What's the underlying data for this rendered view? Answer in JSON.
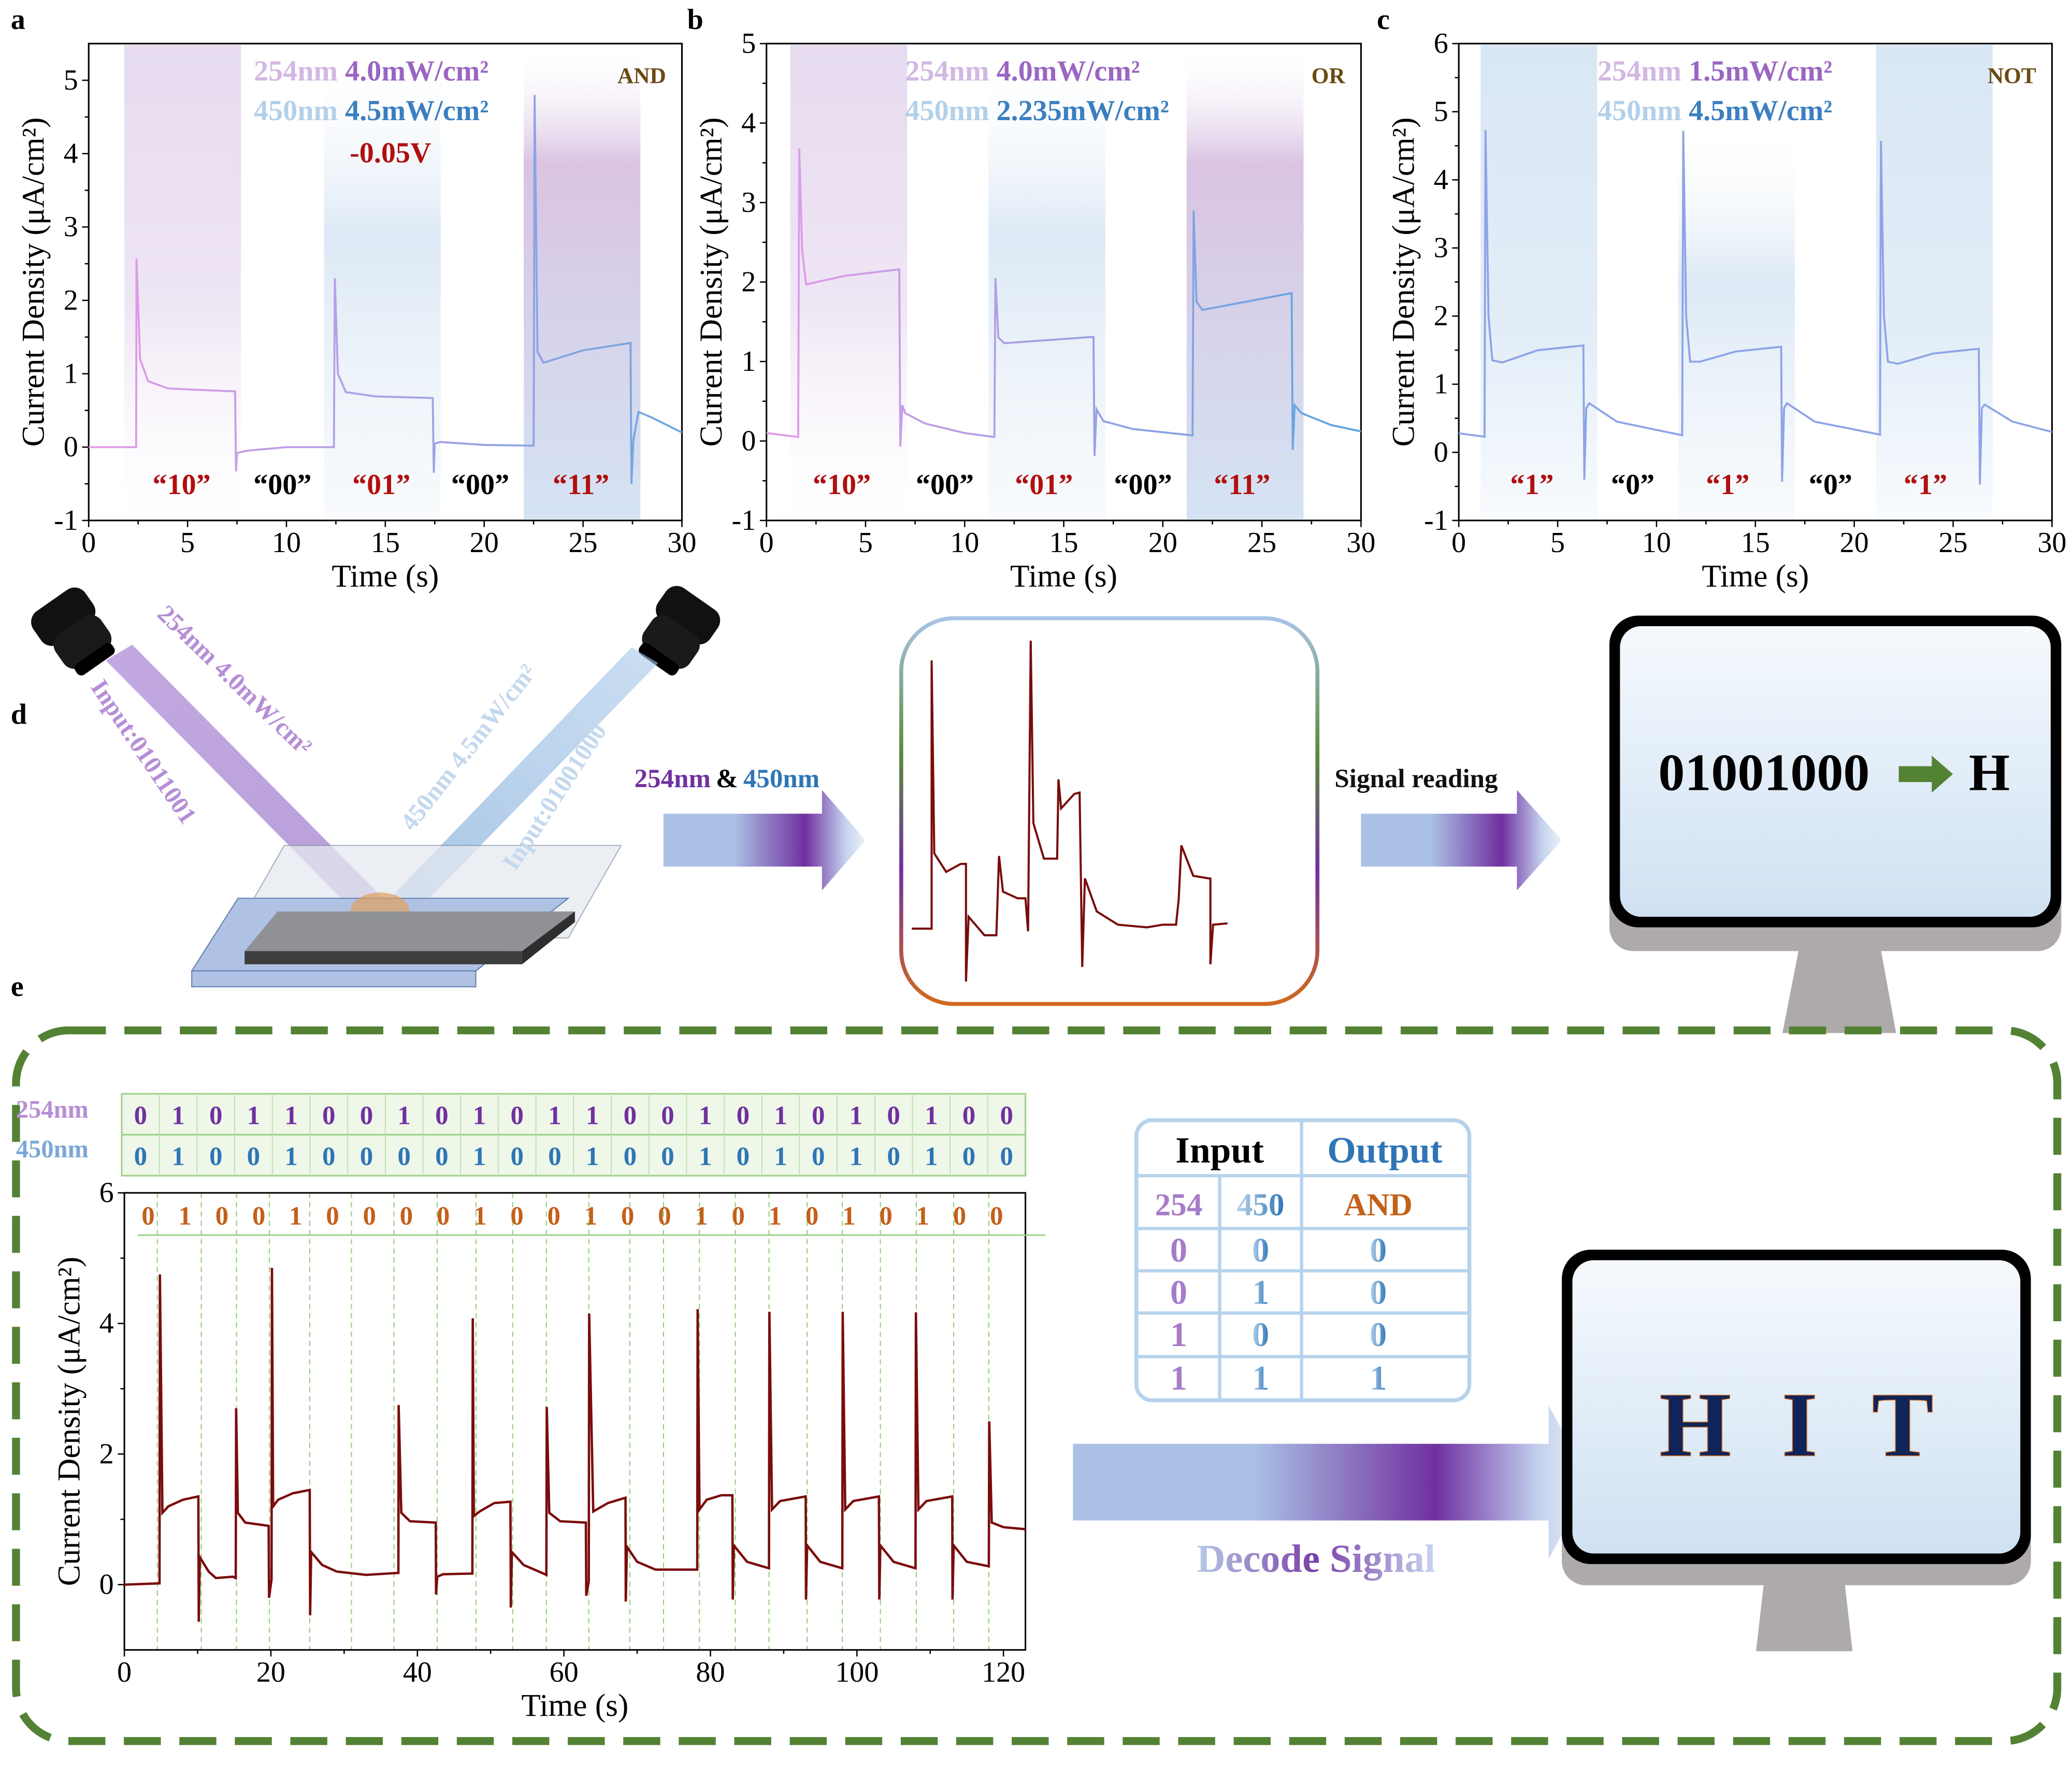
{
  "figure": {
    "panel_labels": {
      "a": "a",
      "b": "b",
      "c": "c",
      "d": "d",
      "e": "e"
    },
    "colors": {
      "uv254": "#8e5fb8",
      "uv254_light": "#c9a9dd",
      "blue450": "#2e75b6",
      "blue450_light": "#a8c8e6",
      "code_red": "#b01010",
      "gate_label": "#6b4a12",
      "trace_dark_red": "#7a0c0c",
      "output_orange": "#c4601a",
      "green_dash": "#548235",
      "monitor_gray": "#aeaaaa",
      "monitor_screen": "#d6e6f4",
      "hit_navy": "#0f2458"
    }
  },
  "chart_data": [
    {
      "id": "a",
      "type": "line",
      "title": "",
      "xlabel": "Time (s)",
      "ylabel": "Current Density (μA/cm²)",
      "xlim": [
        0,
        30
      ],
      "ylim": [
        -1,
        5.5
      ],
      "xticks": [
        0,
        5,
        10,
        15,
        20,
        25,
        30
      ],
      "yticks": [
        -1,
        0,
        1,
        2,
        3,
        4,
        5
      ],
      "annotation_lines": [
        {
          "wl": "254nm",
          "power": "4.0mW/cm²"
        },
        {
          "wl": "450nm",
          "power": "4.5mW/cm²"
        }
      ],
      "bias": "-0.05V",
      "gate": "AND",
      "states": [
        {
          "label": "“10”",
          "x": 4.7,
          "highlight": true,
          "band": [
            1.8,
            7.7
          ],
          "band_color": "uv"
        },
        {
          "label": "“00”",
          "x": 9.8,
          "highlight": false
        },
        {
          "label": "“01”",
          "x": 14.8,
          "highlight": true,
          "band": [
            11.9,
            17.8
          ],
          "band_color": "blue"
        },
        {
          "label": "“00”",
          "x": 19.8,
          "highlight": false
        },
        {
          "label": "“11”",
          "x": 24.9,
          "highlight": true,
          "band": [
            22.0,
            27.9
          ],
          "band_color": "mix"
        }
      ],
      "series": [
        {
          "name": "photocurrent",
          "x": [
            0,
            2.4,
            2.42,
            2.6,
            3.0,
            4.0,
            5.5,
            7.4,
            7.45,
            7.5,
            8.0,
            10.0,
            12.4,
            12.45,
            12.6,
            13.0,
            14.5,
            17.4,
            17.45,
            17.5,
            17.8,
            20.0,
            22.5,
            22.55,
            22.7,
            23.0,
            25.0,
            27.4,
            27.45,
            27.55,
            27.8,
            28.5,
            30.0
          ],
          "y": [
            0,
            0,
            2.57,
            1.2,
            0.9,
            0.8,
            0.78,
            0.76,
            -0.33,
            -0.08,
            -0.05,
            0,
            0,
            2.3,
            1.0,
            0.75,
            0.69,
            0.67,
            -0.35,
            0.05,
            0.07,
            0.03,
            0.02,
            4.8,
            1.3,
            1.15,
            1.32,
            1.42,
            -0.5,
            0.1,
            0.48,
            0.4,
            0.2
          ]
        }
      ]
    },
    {
      "id": "b",
      "type": "line",
      "title": "",
      "xlabel": "Time (s)",
      "ylabel": "Current Density (μA/cm²)",
      "xlim": [
        0,
        30
      ],
      "ylim": [
        -1,
        5
      ],
      "xticks": [
        0,
        5,
        10,
        15,
        20,
        25,
        30
      ],
      "yticks": [
        -1,
        0,
        1,
        2,
        3,
        4,
        5
      ],
      "annotation_lines": [
        {
          "wl": "254nm",
          "power": "4.0mW/cm²"
        },
        {
          "wl": "450nm",
          "power": "2.235mW/cm²"
        }
      ],
      "gate": "OR",
      "states": [
        {
          "label": "“10”",
          "x": 3.8,
          "highlight": true,
          "band": [
            1.2,
            7.1
          ],
          "band_color": "uv"
        },
        {
          "label": "“00”",
          "x": 9.0,
          "highlight": false
        },
        {
          "label": "“01”",
          "x": 14.0,
          "highlight": true,
          "band": [
            11.2,
            17.1
          ],
          "band_color": "blue"
        },
        {
          "label": "“00”",
          "x": 19.0,
          "highlight": false
        },
        {
          "label": "“11”",
          "x": 24.0,
          "highlight": true,
          "band": [
            21.2,
            27.1
          ],
          "band_color": "mix"
        }
      ],
      "series": [
        {
          "name": "photocurrent",
          "x": [
            0,
            1.6,
            1.65,
            1.8,
            2.0,
            4.0,
            6.7,
            6.75,
            6.85,
            7.0,
            8.0,
            10.0,
            11.5,
            11.55,
            11.7,
            12.0,
            16.5,
            16.55,
            16.65,
            17.0,
            18.5,
            21.5,
            21.55,
            21.7,
            22.0,
            26.5,
            26.55,
            26.65,
            27.0,
            28.5,
            30.0
          ],
          "y": [
            0.1,
            0.05,
            3.68,
            2.4,
            1.97,
            2.08,
            2.16,
            -0.07,
            0.45,
            0.35,
            0.22,
            0.1,
            0.05,
            2.05,
            1.3,
            1.23,
            1.31,
            -0.19,
            0.4,
            0.25,
            0.15,
            0.07,
            2.9,
            1.75,
            1.65,
            1.86,
            -0.11,
            0.45,
            0.35,
            0.2,
            0.12
          ]
        }
      ]
    },
    {
      "id": "c",
      "type": "line",
      "title": "",
      "xlabel": "Time (s)",
      "ylabel": "Current Density (μA/cm²)",
      "xlim": [
        0,
        30
      ],
      "ylim": [
        -1,
        6
      ],
      "xticks": [
        0,
        5,
        10,
        15,
        20,
        25,
        30
      ],
      "yticks": [
        -1,
        0,
        1,
        2,
        3,
        4,
        5,
        6
      ],
      "annotation_lines": [
        {
          "wl": "254nm",
          "power": "1.5mW/cm²"
        },
        {
          "wl": "450nm",
          "power": "4.5mW/cm²"
        }
      ],
      "gate": "NOT",
      "states": [
        {
          "label": "“1”",
          "x": 3.7,
          "highlight": true,
          "band": [
            1.1,
            7.0
          ],
          "band_color": "blue"
        },
        {
          "label": "“0”",
          "x": 8.8,
          "highlight": false
        },
        {
          "label": "“1”",
          "x": 13.6,
          "highlight": true
        },
        {
          "label": "“0”",
          "x": 18.8,
          "highlight": false
        },
        {
          "label": "“1”",
          "x": 23.6,
          "highlight": true,
          "band": [
            21.1,
            27.0
          ],
          "band_color": "blue"
        }
      ],
      "series": [
        {
          "name": "photocurrent",
          "x": [
            0,
            1.3,
            1.35,
            1.5,
            1.7,
            2.2,
            4.0,
            6.3,
            6.35,
            6.45,
            6.6,
            8.0,
            11.3,
            11.35,
            11.5,
            11.7,
            12.2,
            14.0,
            16.3,
            16.35,
            16.45,
            16.6,
            18.0,
            21.3,
            21.35,
            21.5,
            21.7,
            22.2,
            24.0,
            26.3,
            26.35,
            26.45,
            26.6,
            28.0,
            30.0
          ],
          "y": [
            0.28,
            0.23,
            4.73,
            2.0,
            1.35,
            1.32,
            1.5,
            1.57,
            -0.4,
            0.65,
            0.72,
            0.45,
            0.25,
            4.72,
            2.0,
            1.33,
            1.33,
            1.48,
            1.55,
            -0.43,
            0.65,
            0.72,
            0.45,
            0.26,
            4.57,
            2.0,
            1.33,
            1.3,
            1.45,
            1.52,
            -0.47,
            0.65,
            0.7,
            0.45,
            0.3
          ]
        }
      ]
    },
    {
      "id": "e",
      "type": "line",
      "title": "",
      "xlabel": "Time (s)",
      "ylabel": "Current Density (μA/cm²)",
      "xlim": [
        0,
        123
      ],
      "ylim": [
        -1,
        6
      ],
      "xticks": [
        0,
        20,
        40,
        60,
        80,
        100,
        120
      ],
      "yticks": [
        0,
        2,
        4,
        6
      ],
      "divider_times": [
        4.5,
        10.5,
        15.3,
        19.8,
        25.3,
        31.0,
        36.8,
        42.7,
        48.0,
        53.0,
        57.6,
        63.4,
        69.0,
        73.6,
        78.5,
        83.4,
        88.0,
        93.2,
        98.0,
        103.2,
        108.1,
        113.2,
        118.0
      ],
      "output_bits": [
        0,
        1,
        0,
        0,
        1,
        0,
        0,
        0,
        0,
        1,
        0,
        0,
        1,
        0,
        0,
        1,
        0,
        1,
        0,
        1,
        0,
        1,
        0,
        0
      ],
      "series": [
        {
          "name": "photocurrent",
          "x": [
            0,
            4.8,
            4.85,
            5.2,
            6.0,
            8.0,
            10.1,
            10.15,
            10.3,
            11.5,
            12.5,
            14.8,
            15.2,
            15.25,
            15.5,
            16.5,
            19.7,
            19.75,
            20.1,
            20.15,
            20.3,
            21.0,
            23.0,
            25.3,
            25.35,
            25.5,
            27.0,
            29.0,
            33.0,
            37.4,
            37.45,
            37.8,
            39.0,
            42.5,
            42.55,
            42.7,
            43.5,
            47.5,
            47.55,
            47.7,
            48.5,
            50.5,
            52.7,
            52.75,
            52.9,
            54.5,
            57.2,
            57.6,
            57.65,
            58.0,
            59.5,
            63.0,
            63.05,
            63.4,
            63.45,
            64.0,
            66.0,
            68.4,
            68.45,
            68.6,
            70.0,
            72.5,
            78.2,
            78.25,
            78.5,
            79.5,
            81.5,
            83.0,
            83.05,
            83.2,
            85.0,
            88.0,
            88.05,
            88.4,
            89.5,
            93.0,
            93.05,
            93.2,
            95.0,
            98.0,
            98.05,
            98.4,
            99.5,
            103.0,
            103.05,
            103.2,
            105.0,
            108.0,
            108.05,
            108.4,
            109.5,
            113.0,
            113.05,
            113.2,
            115.0,
            118.0,
            118.05,
            118.4,
            120.0,
            123.0
          ],
          "y": [
            0,
            0.02,
            4.75,
            1.1,
            1.2,
            1.3,
            1.35,
            -0.57,
            0.42,
            0.2,
            0.1,
            0.12,
            0.1,
            2.7,
            1.1,
            0.95,
            0.9,
            -0.2,
            0.08,
            4.85,
            1.2,
            1.3,
            1.4,
            1.45,
            -0.47,
            0.5,
            0.3,
            0.2,
            0.15,
            0.18,
            2.75,
            1.1,
            0.97,
            0.95,
            -0.15,
            0.12,
            0.16,
            0.17,
            4.08,
            1.05,
            1.12,
            1.25,
            1.27,
            -0.35,
            0.5,
            0.3,
            0.17,
            0.15,
            2.72,
            1.1,
            0.97,
            0.95,
            -0.17,
            0.05,
            4.15,
            1.12,
            1.25,
            1.33,
            -0.26,
            0.58,
            0.35,
            0.23,
            0.23,
            4.22,
            1.15,
            1.3,
            1.37,
            1.37,
            -0.23,
            0.6,
            0.35,
            0.25,
            4.18,
            1.15,
            1.28,
            1.35,
            -0.23,
            0.6,
            0.35,
            0.25,
            4.18,
            1.15,
            1.28,
            1.35,
            -0.23,
            0.6,
            0.35,
            0.25,
            4.17,
            1.15,
            1.28,
            1.35,
            -0.23,
            0.6,
            0.35,
            0.28,
            2.5,
            0.95,
            0.88,
            0.85
          ]
        }
      ]
    }
  ],
  "panel_d": {
    "beam_left_label": "254nm 4.0mW/cm²",
    "beam_left_input": "Input:01011001",
    "beam_right_label": "450nm 4.5mW/cm²",
    "beam_right_input": "Input:01001000",
    "arrow1_label_a": "254nm",
    "arrow1_label_amp": "&",
    "arrow1_label_b": "450nm",
    "arrow2_label": "Signal reading",
    "screen_binary": "01001000",
    "screen_char": "H"
  },
  "panel_e": {
    "row_labels": {
      "uv": "254nm",
      "blue": "450nm"
    },
    "bits_254": [
      0,
      1,
      0,
      1,
      1,
      0,
      0,
      1,
      0,
      1,
      0,
      1,
      1,
      0,
      0,
      1,
      0,
      1,
      0,
      1,
      0,
      1,
      0,
      0
    ],
    "bits_450": [
      0,
      1,
      0,
      0,
      1,
      0,
      0,
      0,
      0,
      1,
      0,
      0,
      1,
      0,
      0,
      1,
      0,
      1,
      0,
      1,
      0,
      1,
      0,
      0
    ],
    "truth_table": {
      "header_input": "Input",
      "header_output": "Output",
      "col_254": "254",
      "col_450": "450",
      "col_gate": "AND",
      "rows": [
        [
          "0",
          "0",
          "0"
        ],
        [
          "0",
          "1",
          "0"
        ],
        [
          "1",
          "0",
          "0"
        ],
        [
          "1",
          "1",
          "1"
        ]
      ]
    },
    "decode_label": "Decode Signal",
    "screen_text": [
      "H",
      "I",
      "T"
    ]
  }
}
